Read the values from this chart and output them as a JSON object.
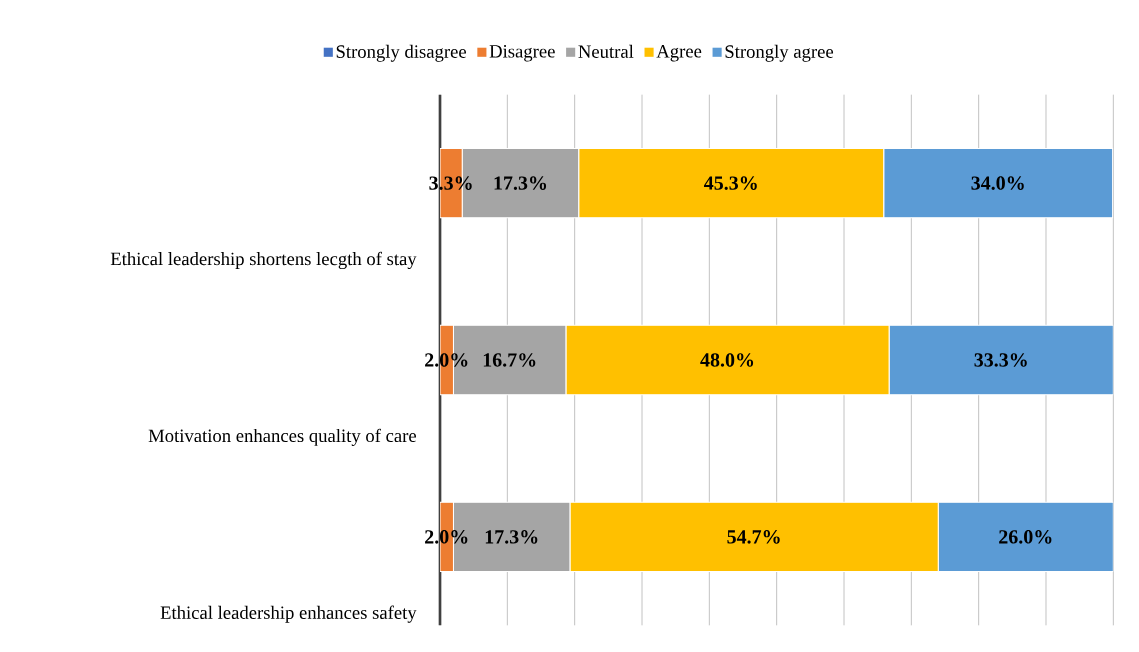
{
  "chart_data": {
    "type": "bar",
    "orientation": "horizontal",
    "stacked": true,
    "grid": "x",
    "legend": "top",
    "tick_labels": "y",
    "categories": [
      "Ethical leadership shortens lecgth of stay",
      "Motivation enhances quality of care",
      "Ethical leadership enhances safety"
    ],
    "series": [
      {
        "name": "Strongly disagree",
        "color": "#4472c4",
        "values": [
          null,
          null,
          null
        ]
      },
      {
        "name": "Disagree",
        "color": "#ed7d31",
        "values": [
          3.3,
          2.0,
          2.0
        ],
        "value_labels": [
          "3.3%",
          "2.0%",
          "2.0%"
        ]
      },
      {
        "name": "Neutral",
        "color": "#a5a5a5",
        "values": [
          17.3,
          16.7,
          17.3
        ],
        "value_labels": [
          "17.3%",
          "16.7%",
          "17.3%"
        ]
      },
      {
        "name": "Agree",
        "color": "#ffc000",
        "values": [
          45.3,
          48.0,
          54.7
        ],
        "value_labels": [
          "45.3%",
          "48.0%",
          "54.7%"
        ]
      },
      {
        "name": "Strongly agree",
        "color": "#5b9bd5",
        "values": [
          34.0,
          33.3,
          26.0
        ],
        "value_labels": [
          "34.0%",
          "33.3%",
          "26.0%"
        ]
      }
    ]
  }
}
